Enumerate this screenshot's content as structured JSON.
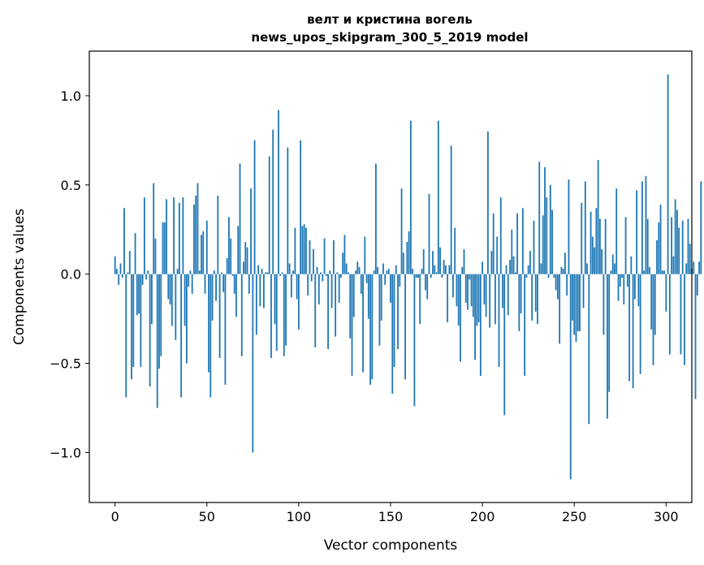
{
  "chart_data": {
    "type": "bar",
    "title": "велт и кристина вогель",
    "subtitle": "news_upos_skipgram_300_5_2019 model",
    "xlabel": "Vector components",
    "ylabel": "Components values",
    "xlim": [
      -14,
      314
    ],
    "ylim": [
      -1.28,
      1.25
    ],
    "x_ticks": [
      0,
      50,
      100,
      150,
      200,
      250,
      300
    ],
    "x_tick_labels": [
      "0",
      "50",
      "100",
      "150",
      "200",
      "250",
      "300"
    ],
    "y_ticks": [
      -1.0,
      -0.5,
      0.0,
      0.5,
      1.0
    ],
    "y_tick_labels": [
      "−1.0",
      "−0.5",
      "0.0",
      "0.5",
      "1.0"
    ],
    "bar_color": "#1f77b4",
    "values": [
      0.1,
      0.03,
      -0.06,
      0.06,
      -0.02,
      0.37,
      -0.69,
      0.01,
      0.13,
      -0.59,
      -0.52,
      0.23,
      -0.23,
      -0.22,
      -0.52,
      -0.06,
      0.43,
      -0.03,
      0.02,
      -0.63,
      -0.28,
      0.51,
      0.2,
      -0.75,
      -0.53,
      -0.46,
      0.29,
      0.29,
      0.42,
      -0.14,
      -0.17,
      -0.29,
      0.43,
      -0.37,
      0.03,
      0.4,
      -0.69,
      0.43,
      -0.29,
      -0.5,
      -0.07,
      0.02,
      -0.11,
      0.39,
      0.44,
      0.51,
      0.02,
      0.22,
      0.24,
      -0.11,
      0.3,
      -0.55,
      -0.69,
      -0.26,
      0.02,
      -0.15,
      0.44,
      -0.47,
      0.01,
      -0.1,
      -0.62,
      0.09,
      0.32,
      0.2,
      -0.01,
      -0.11,
      -0.24,
      0.27,
      0.62,
      -0.46,
      0.07,
      0.18,
      0.15,
      -0.11,
      0.48,
      -1.0,
      0.75,
      -0.34,
      0.05,
      -0.18,
      0.03,
      -0.19,
      0.01,
      0.01,
      0.66,
      -0.47,
      0.81,
      -0.28,
      -0.43,
      0.92,
      -0.01,
      0.01,
      -0.46,
      -0.4,
      0.71,
      0.06,
      -0.13,
      0.02,
      0.26,
      -0.14,
      -0.31,
      0.75,
      0.27,
      0.28,
      0.26,
      -0.12,
      0.19,
      -0.04,
      0.14,
      -0.41,
      0.04,
      -0.17,
      0.01,
      -0.04,
      0.2,
      -0.01,
      -0.42,
      0.02,
      -0.19,
      0.19,
      -0.35,
      0.01,
      -0.16,
      -0.02,
      0.12,
      0.22,
      0.06,
      0.01,
      -0.36,
      -0.57,
      -0.24,
      0.02,
      0.07,
      0.04,
      -0.11,
      -0.55,
      0.21,
      -0.05,
      -0.25,
      -0.62,
      -0.59,
      0.02,
      0.62,
      0.04,
      -0.4,
      -0.26,
      0.06,
      -0.06,
      0.02,
      0.03,
      -0.16,
      -0.67,
      -0.52,
      0.05,
      -0.42,
      -0.07,
      0.48,
      0.12,
      -0.59,
      0.18,
      0.24,
      0.86,
      0.03,
      -0.74,
      -0.02,
      -0.02,
      -0.28,
      0.03,
      0.14,
      -0.09,
      -0.14,
      0.45,
      -0.02,
      0.13,
      0.05,
      0.01,
      0.86,
      0.15,
      -0.02,
      0.08,
      0.05,
      -0.27,
      0.05,
      0.72,
      -0.13,
      0.26,
      -0.18,
      -0.29,
      -0.49,
      0.04,
      0.14,
      -0.16,
      -0.2,
      -0.03,
      -0.18,
      -0.24,
      -0.48,
      -0.29,
      -0.27,
      -0.57,
      0.07,
      -0.17,
      -0.24,
      0.8,
      -0.3,
      0.13,
      0.34,
      -0.28,
      0.21,
      -0.52,
      0.43,
      -0.19,
      -0.79,
      0.05,
      -0.23,
      0.08,
      0.25,
      0.1,
      0.01,
      0.34,
      -0.32,
      -0.22,
      0.37,
      -0.57,
      -0.02,
      0.05,
      0.13,
      -0.26,
      0.3,
      -0.21,
      -0.28,
      0.63,
      0.06,
      0.33,
      0.6,
      0.43,
      -0.02,
      0.5,
      0.36,
      -0.02,
      -0.09,
      -0.14,
      -0.39,
      0.04,
      0.03,
      0.12,
      -0.12,
      0.53,
      -1.15,
      -0.26,
      -0.34,
      -0.38,
      -0.32,
      -0.32,
      0.4,
      -0.19,
      0.52,
      0.06,
      -0.84,
      0.35,
      0.21,
      0.15,
      0.37,
      0.64,
      0.31,
      0.14,
      -0.34,
      0.31,
      -0.81,
      -0.66,
      0.02,
      0.11,
      0.06,
      0.48,
      -0.15,
      -0.07,
      -0.02,
      -0.17,
      0.32,
      -0.07,
      -0.6,
      0.1,
      -0.64,
      -0.14,
      0.47,
      -0.18,
      -0.56,
      0.52,
      0.02,
      0.55,
      0.31,
      0.04,
      -0.31,
      -0.51,
      -0.34,
      0.19,
      0.29,
      0.39,
      0.02,
      0.02,
      -0.21,
      1.12,
      -0.45,
      0.32,
      0.1,
      0.42,
      0.36,
      0.26,
      -0.45,
      0.3,
      -0.51,
      0.06,
      0.31,
      0.17,
      0.03,
      0.07,
      -0.7,
      -0.12,
      0.07,
      0.52
    ]
  }
}
